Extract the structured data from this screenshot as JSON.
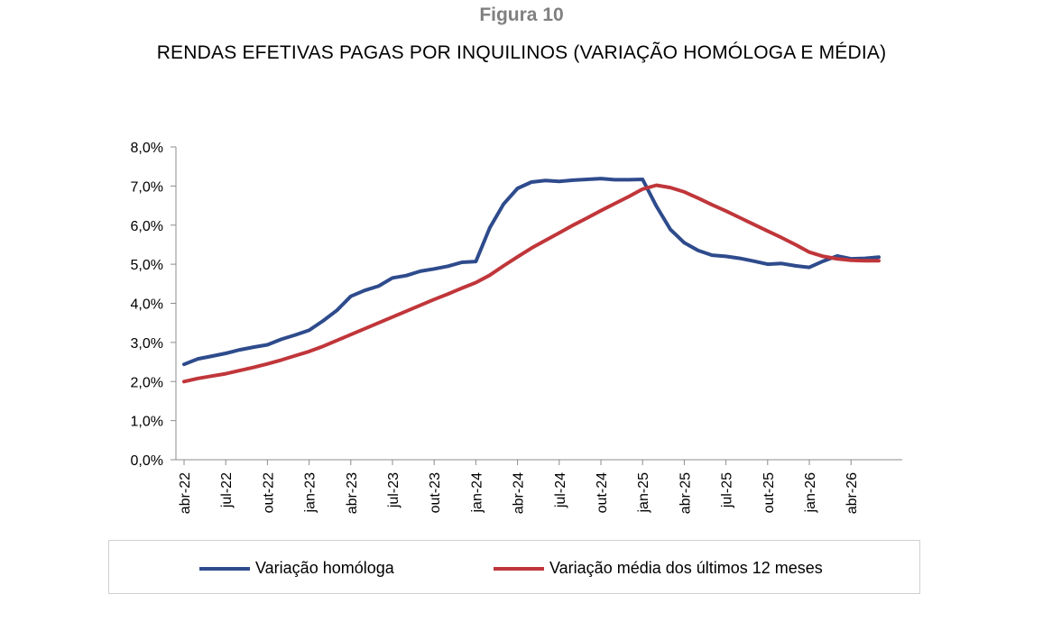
{
  "figure": {
    "label": "Figura 10",
    "title": "RENDAS EFETIVAS PAGAS POR INQUILINOS (VARIAÇÃO HOMÓLOGA E MÉDIA)"
  },
  "chart_data": {
    "type": "line",
    "title": "RENDAS EFETIVAS PAGAS POR INQUILINOS (VARIAÇÃO HOMÓLOGA E MÉDIA)",
    "xlabel": "",
    "ylabel": "",
    "ylim": [
      0,
      8
    ],
    "y_ticks": [
      0,
      1,
      2,
      3,
      4,
      5,
      6,
      7,
      8
    ],
    "y_tick_labels": [
      "0,0%",
      "1,0%",
      "2,0%",
      "3,0%",
      "4,0%",
      "5,0%",
      "6,0%",
      "7,0%",
      "8,0%"
    ],
    "x_tick_labels": [
      "abr-22",
      "jul-22",
      "out-22",
      "jan-23",
      "abr-23",
      "jul-23",
      "out-23",
      "jan-24",
      "abr-24",
      "jul-24",
      "out-24",
      "jan-25",
      "abr-25",
      "jul-25",
      "out-25",
      "jan-26",
      "abr-26"
    ],
    "x_tick_every": 3,
    "grid": false,
    "legend_position": "bottom",
    "series": [
      {
        "name": "Variação homóloga",
        "color": "#2e4b8c",
        "values": [
          2.44,
          2.58,
          2.65,
          2.72,
          2.81,
          2.88,
          2.94,
          3.08,
          3.19,
          3.31,
          3.55,
          3.82,
          4.18,
          4.33,
          4.44,
          4.65,
          4.71,
          4.82,
          4.88,
          4.95,
          5.05,
          5.07,
          5.93,
          6.54,
          6.94,
          7.1,
          7.14,
          7.12,
          7.15,
          7.17,
          7.19,
          7.16,
          7.16,
          7.17,
          6.48,
          5.89,
          5.55,
          5.35,
          5.23,
          5.2,
          5.15,
          5.08,
          5.0,
          5.02,
          4.96,
          4.92,
          5.08,
          5.21,
          5.14,
          5.15,
          5.18
        ]
      },
      {
        "name": "Variação média dos últimos 12 meses",
        "color": "#c0363a",
        "values": [
          2.0,
          2.08,
          2.14,
          2.2,
          2.28,
          2.36,
          2.45,
          2.55,
          2.66,
          2.77,
          2.9,
          3.05,
          3.2,
          3.35,
          3.5,
          3.65,
          3.8,
          3.95,
          4.1,
          4.24,
          4.39,
          4.53,
          4.72,
          4.96,
          5.19,
          5.41,
          5.61,
          5.8,
          6.0,
          6.18,
          6.37,
          6.55,
          6.73,
          6.92,
          7.02,
          6.96,
          6.85,
          6.69,
          6.52,
          6.36,
          6.19,
          6.02,
          5.85,
          5.68,
          5.5,
          5.31,
          5.2,
          5.14,
          5.1,
          5.09,
          5.09
        ]
      }
    ]
  }
}
